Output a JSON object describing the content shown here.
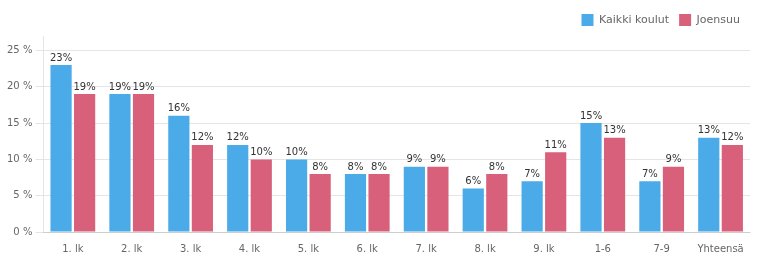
{
  "chart_data": {
    "type": "bar",
    "categories": [
      "1. lk",
      "2. lk",
      "3. lk",
      "4. lk",
      "5. lk",
      "6. lk",
      "7. lk",
      "8. lk",
      "9. lk",
      "1-6",
      "7-9",
      "Yhteensä"
    ],
    "series": [
      {
        "name": "Kaikki koulut",
        "color": "#4BAAE8",
        "values": [
          23,
          19,
          16,
          12,
          10,
          8,
          9,
          6,
          7,
          15,
          7,
          13
        ],
        "value_labels": [
          "23%",
          "19%",
          "16%",
          "12%",
          "10%",
          "8%",
          "9%",
          "6%",
          "7%",
          "15%",
          "7%",
          "13%"
        ]
      },
      {
        "name": "Joensuu",
        "color": "#D9607A",
        "values": [
          19,
          19,
          12,
          10,
          8,
          8,
          9,
          8,
          11,
          13,
          9,
          12
        ],
        "value_labels": [
          "19%",
          "19%",
          "12%",
          "10%",
          "8%",
          "8%",
          "9%",
          "8%",
          "11%",
          "13%",
          "9%",
          "12%"
        ]
      }
    ],
    "ylim": [
      0,
      27
    ],
    "yticks": [
      {
        "value": 0,
        "label": "0 %"
      },
      {
        "value": 5,
        "label": "5 %"
      },
      {
        "value": 10,
        "label": "10 %"
      },
      {
        "value": 15,
        "label": "15 %"
      },
      {
        "value": 20,
        "label": "20 %"
      },
      {
        "value": 25,
        "label": "25 %"
      }
    ],
    "grid": true,
    "legend": "upper right",
    "data_labels": true
  }
}
